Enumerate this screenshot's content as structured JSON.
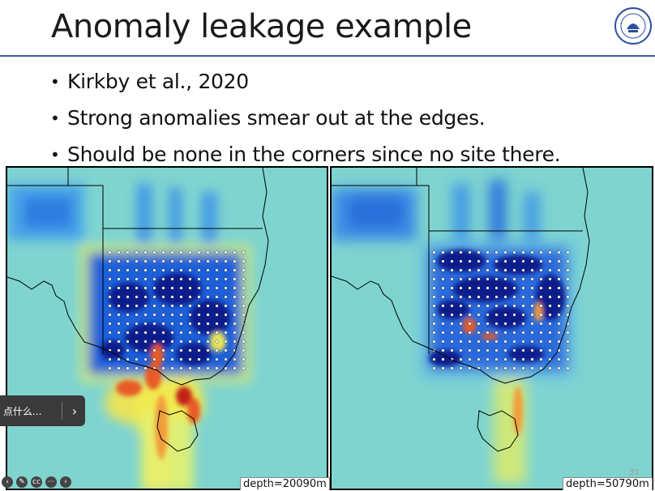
{
  "slide": {
    "title": "Anomaly leakage example",
    "bullets": [
      "Kirkby et al., 2020",
      "Strong anomalies smear out at the edges.",
      "Should be none in the corners since no site there."
    ],
    "page_number": "31",
    "logo_icon": "university-seal-icon"
  },
  "maps": {
    "left": {
      "depth_label": "depth=20090m"
    },
    "right": {
      "depth_label": "depth=50790m"
    }
  },
  "popup": {
    "text": "点什么...",
    "chevron_icon": "chevron-right-icon"
  },
  "controls": [
    "back-icon",
    "pen-icon",
    "cc-icon",
    "more-icon",
    "forward-icon"
  ],
  "colors": {
    "title_rule": "#3b5aa8",
    "background_field": "#7fd4d0"
  }
}
